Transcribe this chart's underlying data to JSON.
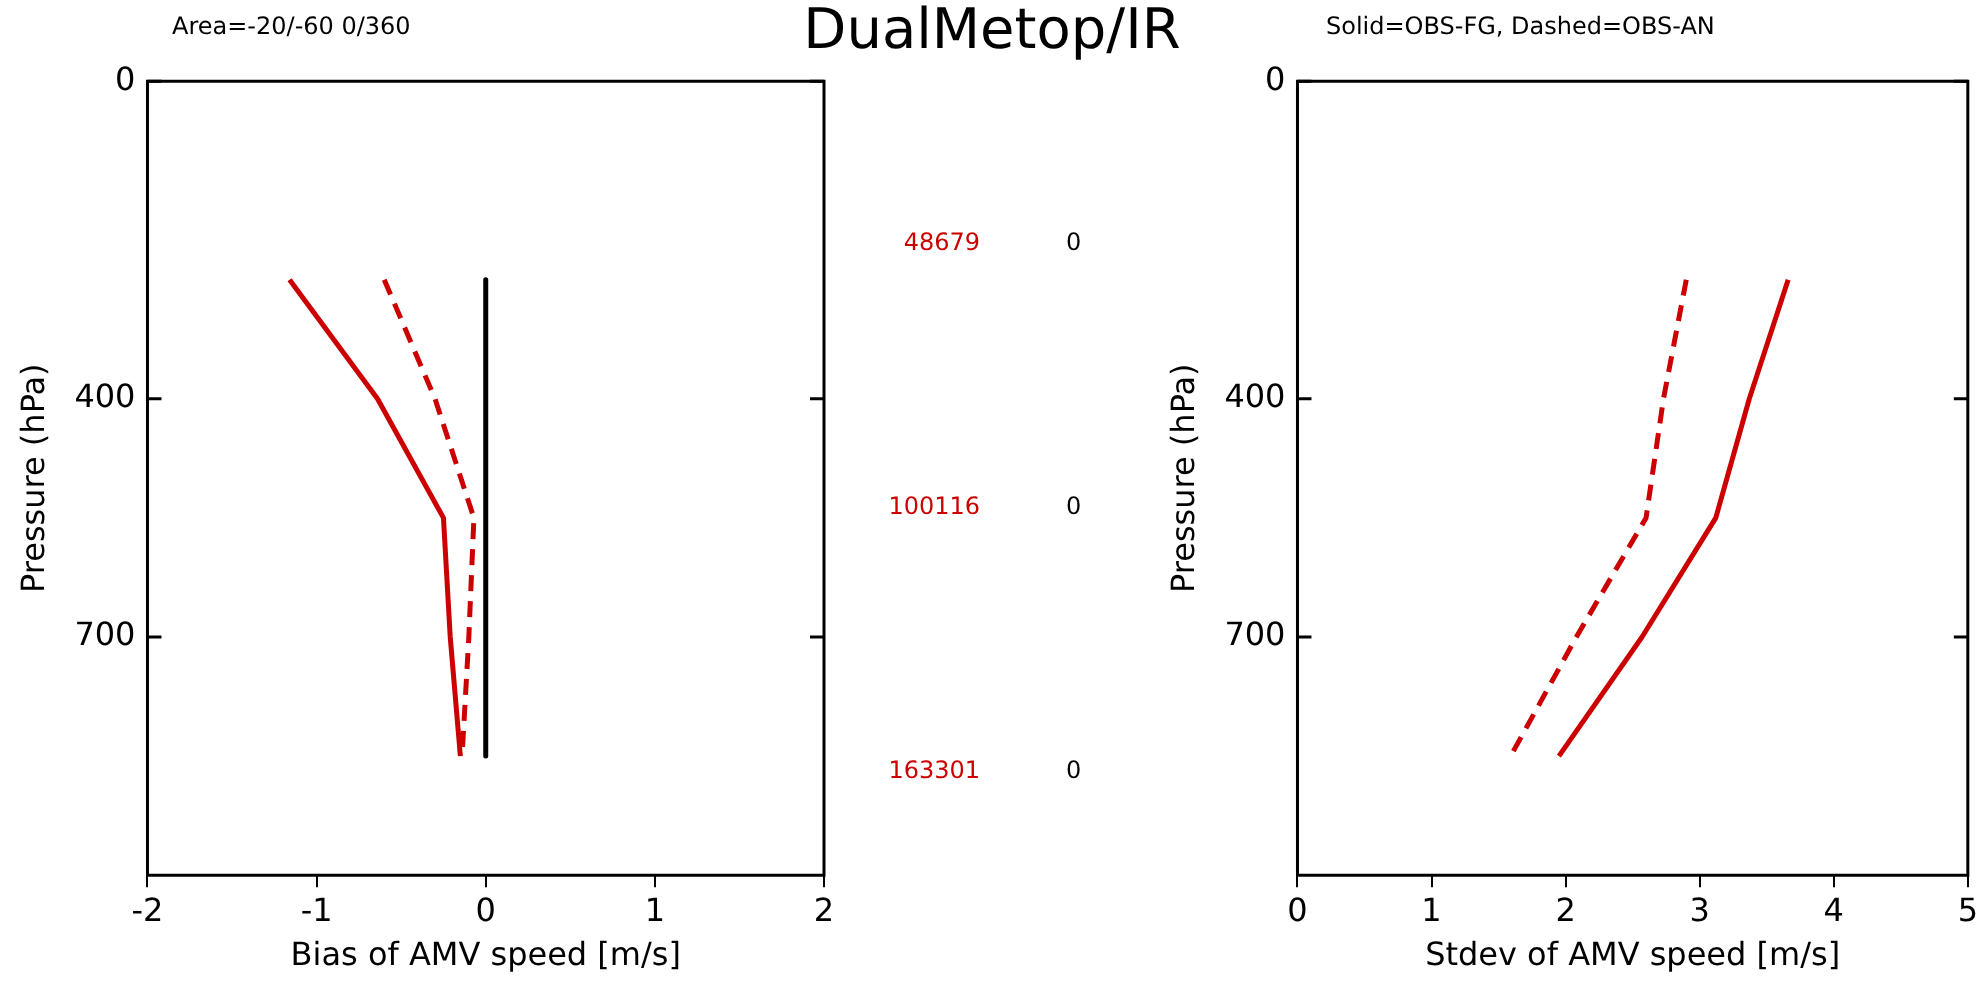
{
  "chart_data": [
    {
      "type": "line",
      "title": "DualMetop/IR",
      "subtitle": "Area=-20/-60 0/360",
      "xlabel": "Bias of AMV speed [m/s]",
      "ylabel": "Pressure (hPa)",
      "xlim": [
        -2,
        2
      ],
      "xticks": [
        -2,
        -1,
        0,
        1,
        2
      ],
      "ylim": [
        1000,
        0
      ],
      "yticks": [
        0,
        400,
        700
      ],
      "grid": false,
      "legend": false,
      "marker": "none",
      "series": [
        {
          "color": "#cc0000",
          "line_style": "solid",
          "x": [
            -1.16,
            -0.64,
            -0.25,
            -0.21,
            -0.15
          ],
          "values": [
            250,
            400,
            550,
            700,
            850
          ]
        },
        {
          "color": "#cc0000",
          "line_style": "dashed",
          "x": [
            -0.6,
            -0.3,
            -0.07,
            -0.1,
            -0.14
          ],
          "values": [
            250,
            400,
            550,
            700,
            850
          ]
        },
        {
          "color": "#000000",
          "line_style": "solid",
          "x": [
            0,
            0
          ],
          "values": [
            250,
            850
          ]
        }
      ],
      "annotations": [
        "48679",
        "0",
        "100116",
        "0",
        "163301",
        "0"
      ]
    },
    {
      "type": "line",
      "title": "Solid=OBS-FG, Dashed=OBS-AN",
      "xlabel": "Stdev of AMV speed [m/s]",
      "ylabel": "Pressure (hPa)",
      "xlim": [
        0,
        5
      ],
      "xticks": [
        0,
        1,
        2,
        3,
        4,
        5
      ],
      "ylim": [
        1000,
        0
      ],
      "yticks": [
        0,
        400,
        700
      ],
      "grid": false,
      "legend": false,
      "marker": "none",
      "series": [
        {
          "color": "#cc0000",
          "line_style": "solid",
          "x": [
            3.66,
            3.37,
            3.12,
            2.57,
            1.95
          ],
          "values": [
            250,
            400,
            550,
            700,
            850
          ]
        },
        {
          "color": "#cc0000",
          "line_style": "dashed",
          "x": [
            2.9,
            2.73,
            2.6,
            2.08,
            1.59
          ],
          "values": [
            250,
            400,
            550,
            700,
            850
          ]
        }
      ]
    }
  ]
}
